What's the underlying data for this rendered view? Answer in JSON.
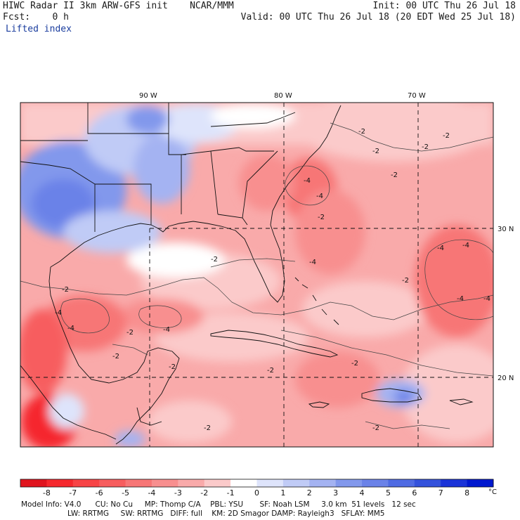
{
  "header": {
    "title": "HIWC Radar II 3km ARW-GFS init    NCAR/MMM",
    "fcst": "Fcst:    0 h",
    "field": "Lifted index",
    "init": "Init: 00 UTC Thu 26 Jul 18",
    "valid": "Valid: 00 UTC Thu 26 Jul 18 (20 EDT Wed 25 Jul 18)"
  },
  "map": {
    "lon_labels": [
      "90 W",
      "80 W",
      "70 W"
    ],
    "lat_labels": [
      "30 N",
      "20 N"
    ],
    "contour_labels": [
      "-2",
      "-4"
    ]
  },
  "colorbar": {
    "unit": "°C",
    "tick_labels": [
      "-8",
      "-7",
      "-6",
      "-5",
      "-4",
      "-3",
      "-2",
      "-1",
      "0",
      "1",
      "2",
      "3",
      "4",
      "5",
      "6",
      "7",
      "8"
    ],
    "colors": [
      "#e0141e",
      "#f5282d",
      "#f74446",
      "#f75d5e",
      "#f77676",
      "#f88f8f",
      "#f9aaaa",
      "#fbcaca",
      "#ffffff",
      "#dee4fb",
      "#c0cbf6",
      "#a4b3f2",
      "#8298ec",
      "#6a82e8",
      "#4f6be3",
      "#3452dc",
      "#1a33d8",
      "#0018cf"
    ]
  },
  "footer": {
    "line1": "Model Info: V4.0      CU: No Cu     MP: Thomp C/A    PBL: YSU       SF: Noah LSM     3.0 km  51 levels   12 sec",
    "line2": "LW: RRTMG     SW: RRTMG   DIFF: full    KM: 2D Smagor DAMP: Rayleigh3   SFLAY: MM5"
  }
}
